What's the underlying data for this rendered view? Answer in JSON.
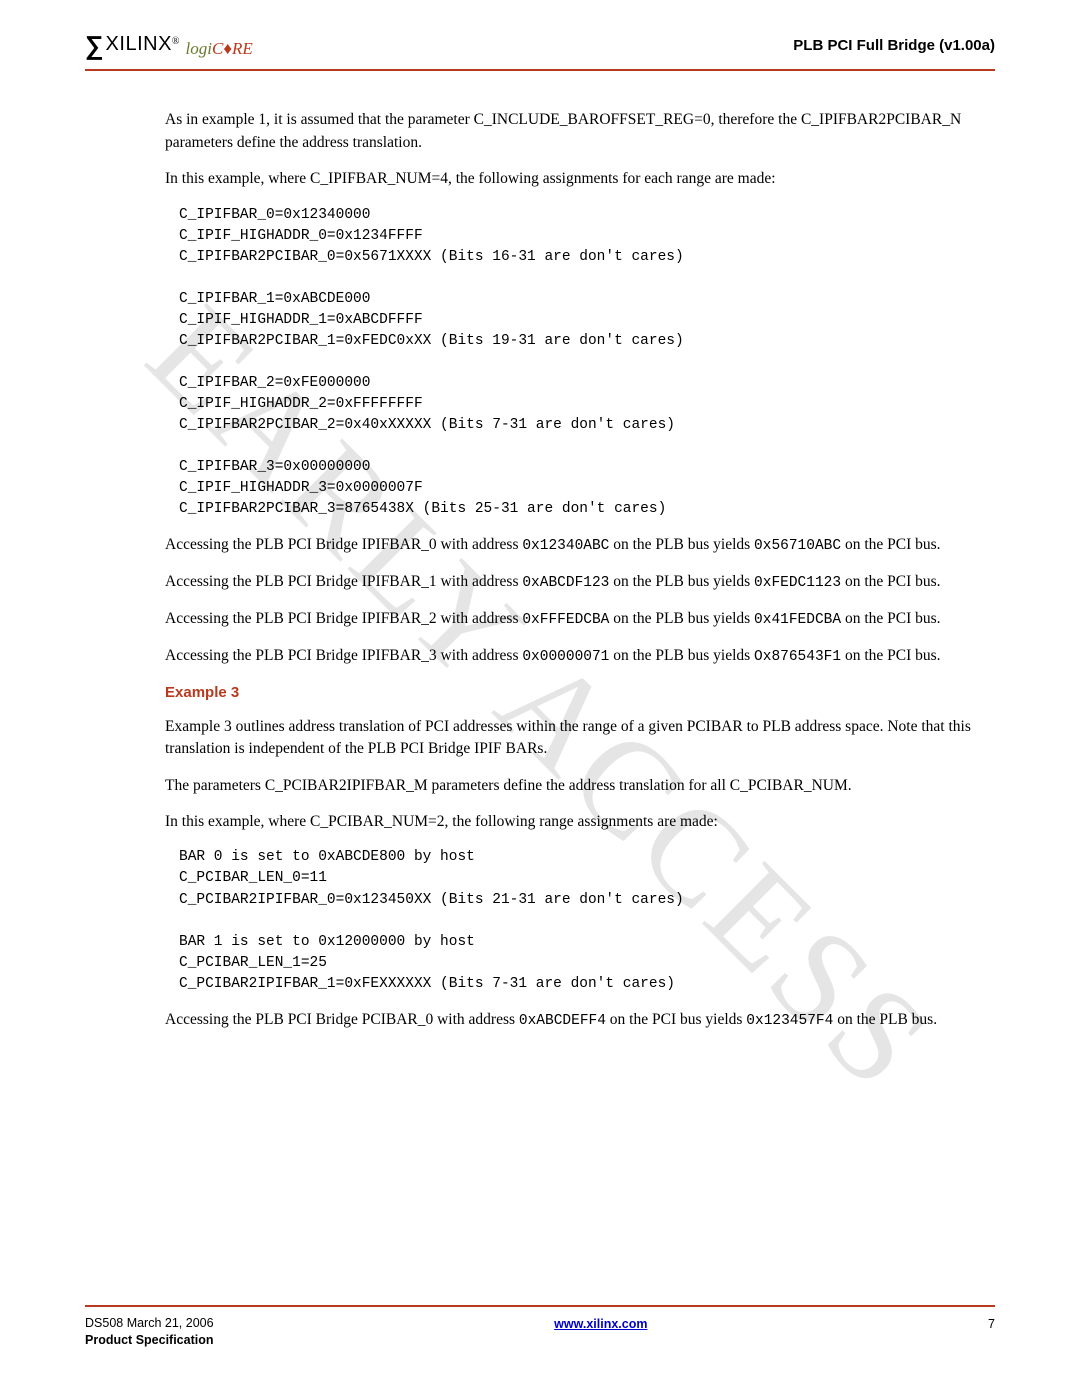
{
  "watermark": "EARLY  ACCESS",
  "header": {
    "logo_sigma": "∑",
    "logo_name": "XILINX",
    "logo_reg": "®",
    "logicore_logi": "logi",
    "logicore_c": "C",
    "logicore_ore": "♦RE",
    "doc_title": "PLB PCI Full Bridge (v1.00a)"
  },
  "body": {
    "p1": "As in example 1, it is assumed that the parameter C_INCLUDE_BAROFFSET_REG=0, therefore the C_IPIFBAR2PCIBAR_N parameters define the address translation.",
    "p2": "In this example, where C_IPIFBAR_NUM=4, the following assignments for each range are made:",
    "code1": "C_IPIFBAR_0=0x12340000\nC_IPIF_HIGHADDR_0=0x1234FFFF\nC_IPIFBAR2PCIBAR_0=0x5671XXXX (Bits 16-31 are don't cares)\n\nC_IPIFBAR_1=0xABCDE000\nC_IPIF_HIGHADDR_1=0xABCDFFFF\nC_IPIFBAR2PCIBAR_1=0xFEDC0xXX (Bits 19-31 are don't cares)\n\nC_IPIFBAR_2=0xFE000000\nC_IPIF_HIGHADDR_2=0xFFFFFFFF\nC_IPIFBAR2PCIBAR_2=0x40xXXXXX (Bits 7-31 are don't cares)\n\nC_IPIFBAR_3=0x00000000\nC_IPIF_HIGHADDR_3=0x0000007F\nC_IPIFBAR2PCIBAR_3=8765438X (Bits 25-31 are don't cares)",
    "acc": [
      {
        "pre": "Accessing the PLB PCI Bridge IPIFBAR_0 with address ",
        "a": "0x12340ABC",
        "mid": " on the PLB bus yields ",
        "r": "0x56710ABC",
        "post": " on the PCI bus."
      },
      {
        "pre": "Accessing the PLB PCI Bridge IPIFBAR_1 with address ",
        "a": "0xABCDF123",
        "mid": " on the PLB bus yields ",
        "r": "0xFEDC1123",
        "post": " on the PCI bus."
      },
      {
        "pre": "Accessing the PLB PCI Bridge IPIFBAR_2 with address ",
        "a": "0xFFFEDCBA",
        "mid": " on the PLB bus yields ",
        "r": "0x41FEDCBA",
        "post": " on the PCI bus."
      },
      {
        "pre": "Accessing the PLB PCI Bridge IPIFBAR_3 with address ",
        "a": "0x00000071",
        "mid": " on the PLB bus yields ",
        "r": "Ox876543F1",
        "post": " on the PCI bus."
      }
    ],
    "h3": "Example 3",
    "p3": "Example 3 outlines address translation of PCI addresses within the range of a given PCIBAR to PLB address space. Note that this translation is independent of the PLB PCI Bridge IPIF BARs.",
    "p4": "The parameters C_PCIBAR2IPIFBAR_M parameters define the address translation for all C_PCIBAR_NUM.",
    "p5": "In this example, where C_PCIBAR_NUM=2, the following range assignments are made:",
    "code2": "BAR 0 is set to 0xABCDE800 by host\nC_PCIBAR_LEN_0=11\nC_PCIBAR2IPIFBAR_0=0x123450XX (Bits 21-31 are don't cares)\n\nBAR 1 is set to 0x12000000 by host\nC_PCIBAR_LEN_1=25\nC_PCIBAR2IPIFBAR_1=0xFEXXXXXX (Bits 7-31 are don't cares)",
    "acc2": {
      "pre": "Accessing the PLB PCI Bridge PCIBAR_0 with address ",
      "a": "0xABCDEFF4",
      "mid": " on the PCI bus yields ",
      "r": "0x123457F4",
      "post": " on the PLB bus."
    }
  },
  "footer": {
    "left1": "DS508 March 21, 2006",
    "left2": "Product Specification",
    "center_url": "www.xilinx.com",
    "page": "7"
  }
}
